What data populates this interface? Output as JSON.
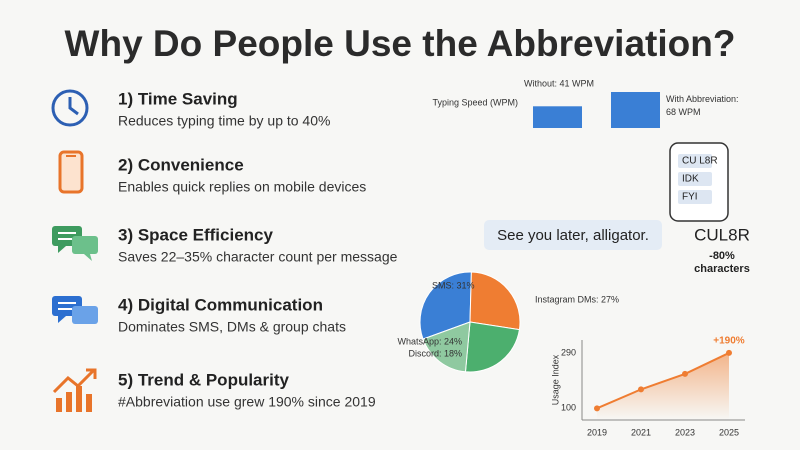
{
  "title": "Why Do People Use the Abbreviation?",
  "items": [
    {
      "title": "1) Time Saving",
      "text": "Reduces typing time by up to 40%"
    },
    {
      "title": "2) Convenience",
      "text": "Enables quick replies on mobile devices"
    },
    {
      "title": "3) Space Efficiency",
      "text": "Saves 22–35% character count per message"
    },
    {
      "title": "4) Digital Communication",
      "text": "Dominates SMS, DMs & group chats"
    },
    {
      "title": "5) Trend & Popularity",
      "text": "#Abbreviation use grew 190% since 2019"
    }
  ],
  "phone": {
    "messages": [
      "CU L8R",
      "IDK",
      "FYI"
    ]
  },
  "comparison": {
    "full": "See you later, alligator.",
    "short": "CUL8R",
    "saving": "-80%",
    "saving_unit": "characters"
  },
  "chart_data": [
    {
      "type": "bar",
      "ylabel": "Typing Speed (WPM)",
      "values": [
        41,
        68
      ],
      "value_labels": [
        "Without: 41 WPM",
        "With Abbreviation: 68 WPM"
      ],
      "color": "#3a7fd5"
    },
    {
      "type": "pie",
      "values": [
        31,
        27,
        24,
        18
      ],
      "value_labels": [
        "SMS: 31%",
        "Instagram DMs: 27%",
        "WhatsApp: 24%",
        "Discord: 18%"
      ],
      "colors": [
        "#3a7fd5",
        "#ef7d32",
        "#4caf6e",
        "#8fc9a0"
      ]
    },
    {
      "type": "line",
      "ylabel": "Usage Index",
      "x": [
        2019,
        2021,
        2023,
        2025
      ],
      "values": [
        100,
        165,
        218,
        290
      ],
      "color": "#ef7d32",
      "annotation": "+190%",
      "xlim": [
        2019,
        2025
      ],
      "xticks": [
        2019,
        2021,
        2023,
        2025
      ],
      "ylim": [
        60,
        300
      ],
      "yticks": [
        100,
        290
      ]
    }
  ]
}
